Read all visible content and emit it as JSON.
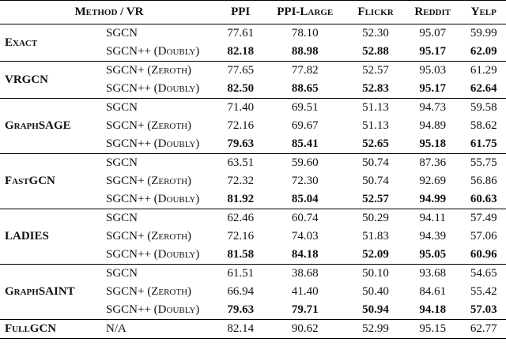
{
  "table": {
    "header": [
      "Method / VR",
      "PPI",
      "PPI-Large",
      "Flickr",
      "Reddit",
      "Yelp"
    ],
    "groups": [
      {
        "method": "Exact",
        "rows": [
          {
            "vr": "SGCN",
            "values": [
              "77.61",
              "78.10",
              "52.30",
              "95.07",
              "59.99"
            ]
          },
          {
            "vr": "SGCN++ (Doubly)",
            "bold": true,
            "values": [
              "82.18",
              "88.98",
              "52.88",
              "95.17",
              "62.09"
            ]
          }
        ]
      },
      {
        "method": "VRGCN",
        "rows": [
          {
            "vr": "SGCN+ (Zeroth)",
            "values": [
              "77.65",
              "77.82",
              "52.57",
              "95.03",
              "61.29"
            ]
          },
          {
            "vr": "SGCN++ (Doubly)",
            "bold": true,
            "values": [
              "82.50",
              "88.65",
              "52.83",
              "95.17",
              "62.64"
            ]
          }
        ]
      },
      {
        "method": "GraphSAGE",
        "rows": [
          {
            "vr": "SGCN",
            "values": [
              "71.40",
              "69.51",
              "51.13",
              "94.73",
              "59.58"
            ]
          },
          {
            "vr": "SGCN+ (Zeroth)",
            "values": [
              "72.16",
              "69.67",
              "51.13",
              "94.89",
              "58.62"
            ]
          },
          {
            "vr": "SGCN++ (Doubly)",
            "bold": true,
            "values": [
              "79.63",
              "85.41",
              "52.65",
              "95.18",
              "61.75"
            ]
          }
        ]
      },
      {
        "method": "FastGCN",
        "rows": [
          {
            "vr": "SGCN",
            "values": [
              "63.51",
              "59.60",
              "50.74",
              "87.36",
              "55.75"
            ]
          },
          {
            "vr": "SGCN+ (Zeroth)",
            "values": [
              "72.32",
              "72.30",
              "50.74",
              "92.69",
              "56.86"
            ]
          },
          {
            "vr": "SGCN++ (Doubly)",
            "bold": true,
            "values": [
              "81.92",
              "85.04",
              "52.57",
              "94.99",
              "60.63"
            ]
          }
        ]
      },
      {
        "method": "LADIES",
        "rows": [
          {
            "vr": "SGCN",
            "values": [
              "62.46",
              "60.74",
              "50.29",
              "94.11",
              "57.49"
            ]
          },
          {
            "vr": "SGCN+ (Zeroth)",
            "values": [
              "72.16",
              "74.03",
              "51.83",
              "94.39",
              "57.06"
            ]
          },
          {
            "vr": "SGCN++ (Doubly)",
            "bold": true,
            "values": [
              "81.58",
              "84.18",
              "52.09",
              "95.05",
              "60.96"
            ]
          }
        ]
      },
      {
        "method": "GraphSAINT",
        "rows": [
          {
            "vr": "SGCN",
            "values": [
              "61.51",
              "38.68",
              "50.10",
              "93.68",
              "54.65"
            ]
          },
          {
            "vr": "SGCN+ (Zeroth)",
            "values": [
              "66.94",
              "41.40",
              "50.40",
              "84.61",
              "55.42"
            ]
          },
          {
            "vr": "SGCN++ (Doubly)",
            "bold": true,
            "values": [
              "79.63",
              "79.71",
              "50.94",
              "94.18",
              "57.03"
            ]
          }
        ]
      },
      {
        "method": "FullGCN",
        "rows": [
          {
            "vr": "N/A",
            "values": [
              "82.14",
              "90.62",
              "52.99",
              "95.15",
              "62.77"
            ]
          }
        ]
      }
    ]
  }
}
